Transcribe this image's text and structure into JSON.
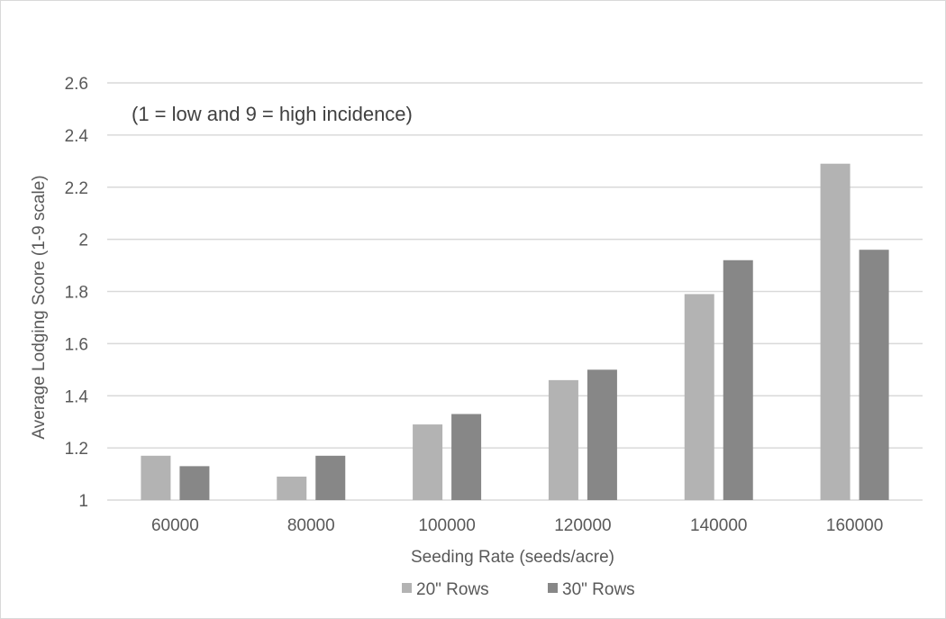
{
  "chart_data": {
    "type": "bar",
    "annotation": "(1 = low and 9 = high incidence)",
    "xlabel": "Seeding Rate (seeds/acre)",
    "ylabel": "Average Lodging Score (1-9 scale)",
    "categories": [
      "60000",
      "80000",
      "100000",
      "120000",
      "140000",
      "160000"
    ],
    "series": [
      {
        "name": "20\" Rows",
        "color": "#b3b3b3",
        "values": [
          1.17,
          1.09,
          1.29,
          1.46,
          1.79,
          2.29
        ]
      },
      {
        "name": "30\" Rows",
        "color": "#878787",
        "values": [
          1.13,
          1.17,
          1.33,
          1.5,
          1.92,
          1.96
        ]
      }
    ],
    "ylim": [
      1,
      2.6
    ],
    "yticks": [
      1,
      1.2,
      1.4,
      1.6,
      1.8,
      2,
      2.2,
      2.4,
      2.6
    ],
    "ytick_labels": [
      "1",
      "1.2",
      "1.4",
      "1.6",
      "1.8",
      "2",
      "2.2",
      "2.4",
      "2.6"
    ],
    "grid": true,
    "legend_position": "bottom"
  }
}
